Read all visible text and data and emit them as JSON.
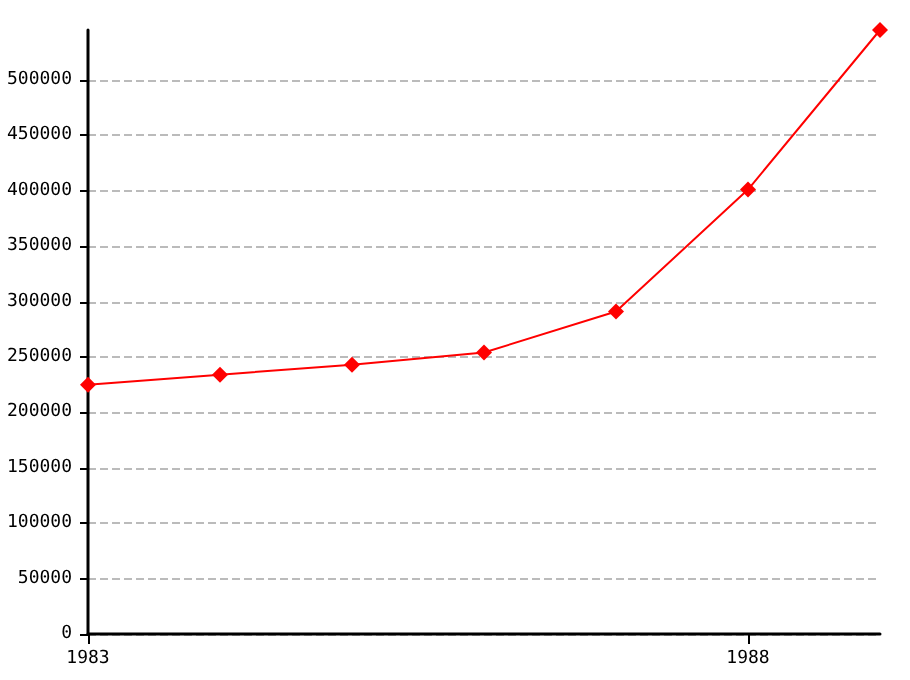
{
  "chart_data": {
    "type": "line",
    "x": [
      1983,
      1984,
      1985,
      1986,
      1987,
      1988,
      1989
    ],
    "series": [
      {
        "color": "#ff0000",
        "values": [
          225000,
          234000,
          243000,
          254000,
          291000,
          401000,
          545000
        ]
      }
    ],
    "xlim": [
      1983,
      1989
    ],
    "xticks": [
      1983,
      1988
    ],
    "ylim": [
      0,
      545000
    ],
    "yticks": [
      0,
      50000,
      100000,
      150000,
      200000,
      250000,
      300000,
      350000,
      400000,
      450000,
      500000
    ],
    "grid": "y",
    "marker": "diamond",
    "line_style": "solid"
  }
}
